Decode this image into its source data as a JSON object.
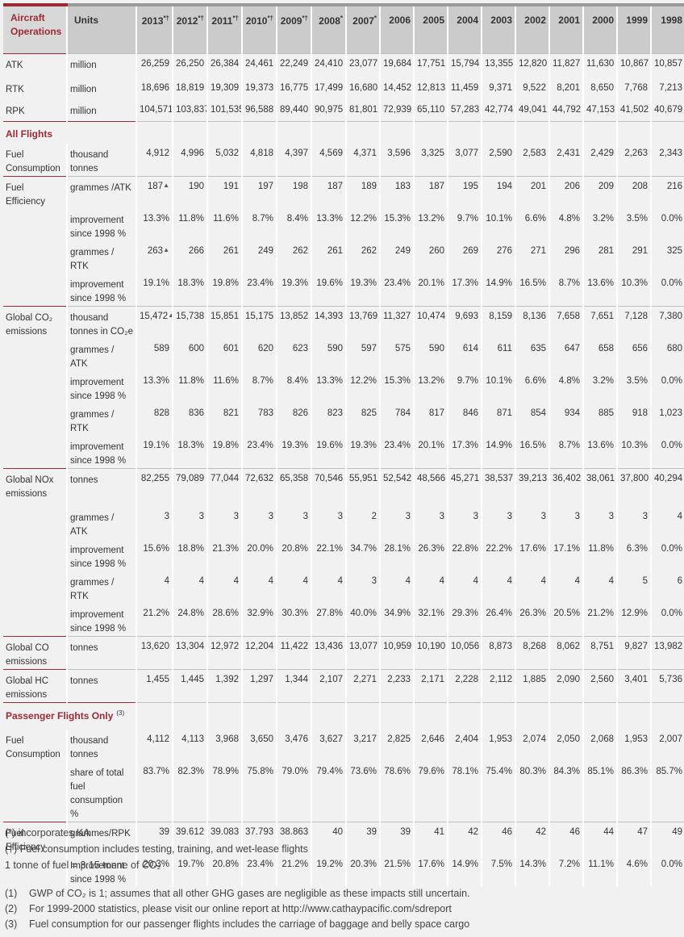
{
  "header": {
    "first": [
      "Aircraft",
      "Operations"
    ],
    "units": "Units",
    "years": [
      "2013",
      "2012",
      "2011",
      "2010",
      "2009",
      "2008",
      "2007",
      "2006",
      "2005",
      "2004",
      "2003",
      "2002",
      "2001",
      "2000",
      "1999",
      "1998"
    ],
    "year_marks": [
      "*†",
      "*†",
      "*†",
      "*†",
      "*†",
      "*",
      "*",
      "",
      "",
      "",
      "",
      "",
      "",
      "",
      "",
      ""
    ]
  },
  "rows": [
    {
      "label": "ATK",
      "units": "million",
      "values": [
        "26,259",
        "26,250",
        "26,384",
        "24,461",
        "22,249",
        "24,410",
        "23,077",
        "19,684",
        "17,751",
        "15,794",
        "13,355",
        "12,820",
        "11,827",
        "11,630",
        "10,867",
        "10,857"
      ],
      "sep": true
    },
    {
      "label": "RTK",
      "units": "million",
      "values": [
        "18,696",
        "18,819",
        "19,309",
        "19,373",
        "16,775",
        "17,499",
        "16,680",
        "14,452",
        "12,813",
        "11,459",
        "9,371",
        "9,522",
        "8,201",
        "8,650",
        "7,768",
        "7,213"
      ]
    },
    {
      "label": "RPK",
      "units": "million",
      "values": [
        "104,571",
        "103,837",
        "101,535",
        "96,588",
        "89,440",
        "90,975",
        "81,801",
        "72,939",
        "65,110",
        "57,283",
        "42,774",
        "49,041",
        "44,792",
        "47,153",
        "41,502",
        "40,679"
      ]
    },
    {
      "section": "All Flights",
      "sep": true
    },
    {
      "label": "Fuel Consumption",
      "units": "thousand tonnes",
      "values": [
        "4,912",
        "4,996",
        "5,032",
        "4,818",
        "4,397",
        "4,569",
        "4,371",
        "3,596",
        "3,325",
        "3,077",
        "2,590",
        "2,583",
        "2,431",
        "2,429",
        "2,263",
        "2,343"
      ]
    },
    {
      "label": "Fuel Efficiency",
      "units": "grammes /ATK",
      "values": [
        "187",
        "190",
        "191",
        "197",
        "198",
        "187",
        "189",
        "183",
        "187",
        "195",
        "194",
        "201",
        "206",
        "209",
        "208",
        "216"
      ],
      "sep": true,
      "tri": true
    },
    {
      "label": "",
      "units": "improvement since 1998 %",
      "values": [
        "13.3%",
        "11.8%",
        "11.6%",
        "8.7%",
        "8.4%",
        "13.3%",
        "12.2%",
        "15.3%",
        "13.2%",
        "9.7%",
        "10.1%",
        "6.6%",
        "4.8%",
        "3.2%",
        "3.5%",
        "0.0%"
      ]
    },
    {
      "label": "",
      "units": "grammes / RTK",
      "values": [
        "263",
        "266",
        "261",
        "249",
        "262",
        "261",
        "262",
        "249",
        "260",
        "269",
        "276",
        "271",
        "296",
        "281",
        "291",
        "325"
      ],
      "tri": true
    },
    {
      "label": "",
      "units": "improvement since 1998 %",
      "values": [
        "19.1%",
        "18.3%",
        "19.8%",
        "23.4%",
        "19.3%",
        "19.6%",
        "19.3%",
        "23.4%",
        "20.1%",
        "17.3%",
        "14.9%",
        "16.5%",
        "8.7%",
        "13.6%",
        "10.3%",
        "0.0%"
      ]
    },
    {
      "label": "Global CO₂ emissions",
      "units": "thousand tonnes in CO₂e",
      "values": [
        "15,472",
        "15,738",
        "15,851",
        "15,175",
        "13,852",
        "14,393",
        "13,769",
        "11,327",
        "10,474",
        "9,693",
        "8,159",
        "8,136",
        "7,658",
        "7,651",
        "7,128",
        "7,380"
      ],
      "sep": true,
      "tri": true
    },
    {
      "label": "",
      "units": "grammes / ATK",
      "values": [
        "589",
        "600",
        "601",
        "620",
        "623",
        "590",
        "597",
        "575",
        "590",
        "614",
        "611",
        "635",
        "647",
        "658",
        "656",
        "680"
      ]
    },
    {
      "label": "",
      "units": "improvement since 1998 %",
      "values": [
        "13.3%",
        "11.8%",
        "11.6%",
        "8.7%",
        "8.4%",
        "13.3%",
        "12.2%",
        "15.3%",
        "13.2%",
        "9.7%",
        "10.1%",
        "6.6%",
        "4.8%",
        "3.2%",
        "3.5%",
        "0.0%"
      ]
    },
    {
      "label": "",
      "units": "grammes / RTK",
      "values": [
        "828",
        "836",
        "821",
        "783",
        "826",
        "823",
        "825",
        "784",
        "817",
        "846",
        "871",
        "854",
        "934",
        "885",
        "918",
        "1,023"
      ]
    },
    {
      "label": "",
      "units": "improvement since 1998 %",
      "values": [
        "19.1%",
        "18.3%",
        "19.8%",
        "23.4%",
        "19.3%",
        "19.6%",
        "19.3%",
        "23.4%",
        "20.1%",
        "17.3%",
        "14.9%",
        "16.5%",
        "8.7%",
        "13.6%",
        "10.3%",
        "0.0%"
      ]
    },
    {
      "label": "Global NOx emissions",
      "units": "tonnes",
      "values": [
        "82,255",
        "79,089",
        "77,044",
        "72,632",
        "65,358",
        "70,546",
        "55,951",
        "52,542",
        "48,566",
        "45,271",
        "38,537",
        "39,213",
        "36,402",
        "38,061",
        "37,800",
        "40,294"
      ],
      "sep": true
    },
    {
      "label": "",
      "units": "grammes / ATK",
      "values": [
        "3",
        "3",
        "3",
        "3",
        "3",
        "3",
        "2",
        "3",
        "3",
        "3",
        "3",
        "3",
        "3",
        "3",
        "3",
        "4"
      ]
    },
    {
      "label": "",
      "units": "improvement since 1998 %",
      "values": [
        "15.6%",
        "18.8%",
        "21.3%",
        "20.0%",
        "20.8%",
        "22.1%",
        "34.7%",
        "28.1%",
        "26.3%",
        "22.8%",
        "22.2%",
        "17.6%",
        "17.1%",
        "11.8%",
        "6.3%",
        "0.0%"
      ]
    },
    {
      "label": "",
      "units": "grammes / RTK",
      "values": [
        "4",
        "4",
        "4",
        "4",
        "4",
        "4",
        "3",
        "4",
        "4",
        "4",
        "4",
        "4",
        "4",
        "4",
        "5",
        "6"
      ]
    },
    {
      "label": "",
      "units": "improvement since 1998 %",
      "values": [
        "21.2%",
        "24.8%",
        "28.6%",
        "32.9%",
        "30.3%",
        "27.8%",
        "40.0%",
        "34.9%",
        "32.1%",
        "29.3%",
        "26.4%",
        "26.3%",
        "20.5%",
        "21.2%",
        "12.9%",
        "0.0%"
      ]
    },
    {
      "label": "Global CO emissions",
      "units": "tonnes",
      "values": [
        "13,620",
        "13,304",
        "12,972",
        "12,204",
        "11,422",
        "13,436",
        "13,077",
        "10,959",
        "10,190",
        "10,056",
        "8,873",
        "8,268",
        "8,062",
        "8,751",
        "9,827",
        "13,982"
      ],
      "sep": true
    },
    {
      "label": "Global HC emissions",
      "units": "tonnes",
      "values": [
        "1,455",
        "1,445",
        "1,392",
        "1,297",
        "1,344",
        "2,107",
        "2,271",
        "2,233",
        "2,171",
        "2,228",
        "2,112",
        "1,885",
        "2,090",
        "2,560",
        "3,401",
        "5,736"
      ],
      "sep": true
    },
    {
      "section": "Passenger Flights Only",
      "section_mark": "(3)",
      "sep": true
    },
    {
      "label": "Fuel Consumption",
      "units": "thousand tonnes",
      "values": [
        "4,112",
        "4,113",
        "3,968",
        "3,650",
        "3,476",
        "3,627",
        "3,217",
        "2,825",
        "2,646",
        "2,404",
        "1,953",
        "2,074",
        "2,050",
        "2,068",
        "1,953",
        "2,007"
      ]
    },
    {
      "label": "",
      "units": "share of total fuel consumption %",
      "values": [
        "83.7%",
        "82.3%",
        "78.9%",
        "75.8%",
        "79.0%",
        "79.4%",
        "73.6%",
        "78.6%",
        "79.6%",
        "78.1%",
        "75.4%",
        "80.3%",
        "84.3%",
        "85.1%",
        "86.3%",
        "85.7%"
      ]
    },
    {
      "label": "Fuel Efficiency",
      "units": "grammes/RPK",
      "values": [
        "39",
        "39.612",
        "39.083",
        "37.793",
        "38.863",
        "40",
        "39",
        "39",
        "41",
        "42",
        "46",
        "42",
        "46",
        "44",
        "47",
        "49"
      ],
      "sep": true
    },
    {
      "label": "",
      "units": "Improvement since 1998 %",
      "values": [
        "20.3%",
        "19.7%",
        "20.8%",
        "23.4%",
        "21.2%",
        "19.2%",
        "20.3%",
        "21.5%",
        "17.6%",
        "14.9%",
        "7.5%",
        "14.3%",
        "7.2%",
        "11.1%",
        "4.6%",
        "0.0%"
      ]
    }
  ],
  "footnotes": {
    "a": "(*) incorporates KA",
    "b": "(†) Fuel consumption includes testing, training, and wet-lease flights",
    "c": "1 tonne of fuel = 3.15 tonne of CO₂",
    "n1_num": "(1)",
    "n1": "GWP of CO₂ is 1; assumes that all other GHG gases are negligible as these impacts still uncertain.",
    "n2_num": "(2)",
    "n2": "For 1999-2000 statistics, please visit our online report at http://www.cathaypacific.com/sdreport",
    "n3_num": "(3)",
    "n3": "Fuel consumption for our passenger flights includes the carriage of baggage and belly space cargo"
  },
  "colors": {
    "accent": "#9c2a36",
    "header_bg": "#cbcbcb",
    "page_bg": "#f1f1f1"
  }
}
